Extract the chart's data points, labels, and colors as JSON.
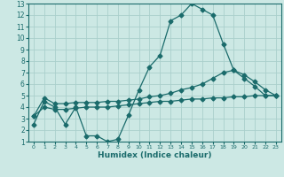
{
  "xlabel": "Humidex (Indice chaleur)",
  "xlim": [
    -0.5,
    23.5
  ],
  "ylim": [
    1,
    13
  ],
  "bg_color": "#cce8e4",
  "grid_color": "#aacfcc",
  "line_color": "#1a6b6b",
  "line1_x": [
    0,
    1,
    2,
    3,
    4,
    5,
    6,
    7,
    8,
    9,
    10,
    11,
    12,
    13,
    14,
    15,
    16,
    17,
    18,
    19,
    20,
    21,
    22,
    23
  ],
  "line1_y": [
    2.5,
    4.5,
    4.0,
    2.5,
    4.0,
    1.5,
    1.5,
    1.0,
    1.2,
    3.3,
    5.5,
    7.5,
    8.5,
    11.5,
    12.0,
    13.0,
    12.5,
    12.0,
    9.5,
    7.2,
    6.5,
    5.8,
    5.0,
    5.0
  ],
  "line2_x": [
    0,
    1,
    2,
    3,
    4,
    5,
    6,
    7,
    8,
    9,
    10,
    11,
    12,
    13,
    14,
    15,
    16,
    17,
    18,
    19,
    20,
    21,
    22,
    23
  ],
  "line2_y": [
    3.2,
    4.8,
    4.3,
    4.3,
    4.4,
    4.4,
    4.4,
    4.5,
    4.5,
    4.6,
    4.7,
    4.9,
    5.0,
    5.2,
    5.5,
    5.7,
    6.0,
    6.5,
    7.0,
    7.2,
    6.8,
    6.2,
    5.5,
    5.0
  ],
  "line3_x": [
    0,
    1,
    2,
    3,
    4,
    5,
    6,
    7,
    8,
    9,
    10,
    11,
    12,
    13,
    14,
    15,
    16,
    17,
    18,
    19,
    20,
    21,
    22,
    23
  ],
  "line3_y": [
    3.2,
    4.0,
    3.8,
    3.8,
    3.9,
    4.0,
    4.0,
    4.0,
    4.1,
    4.2,
    4.3,
    4.4,
    4.5,
    4.5,
    4.6,
    4.7,
    4.7,
    4.8,
    4.8,
    4.9,
    4.9,
    5.0,
    5.0,
    5.0
  ],
  "xticks": [
    0,
    1,
    2,
    3,
    4,
    5,
    6,
    7,
    8,
    9,
    10,
    11,
    12,
    13,
    14,
    15,
    16,
    17,
    18,
    19,
    20,
    21,
    22,
    23
  ],
  "yticks": [
    1,
    2,
    3,
    4,
    5,
    6,
    7,
    8,
    9,
    10,
    11,
    12,
    13
  ]
}
